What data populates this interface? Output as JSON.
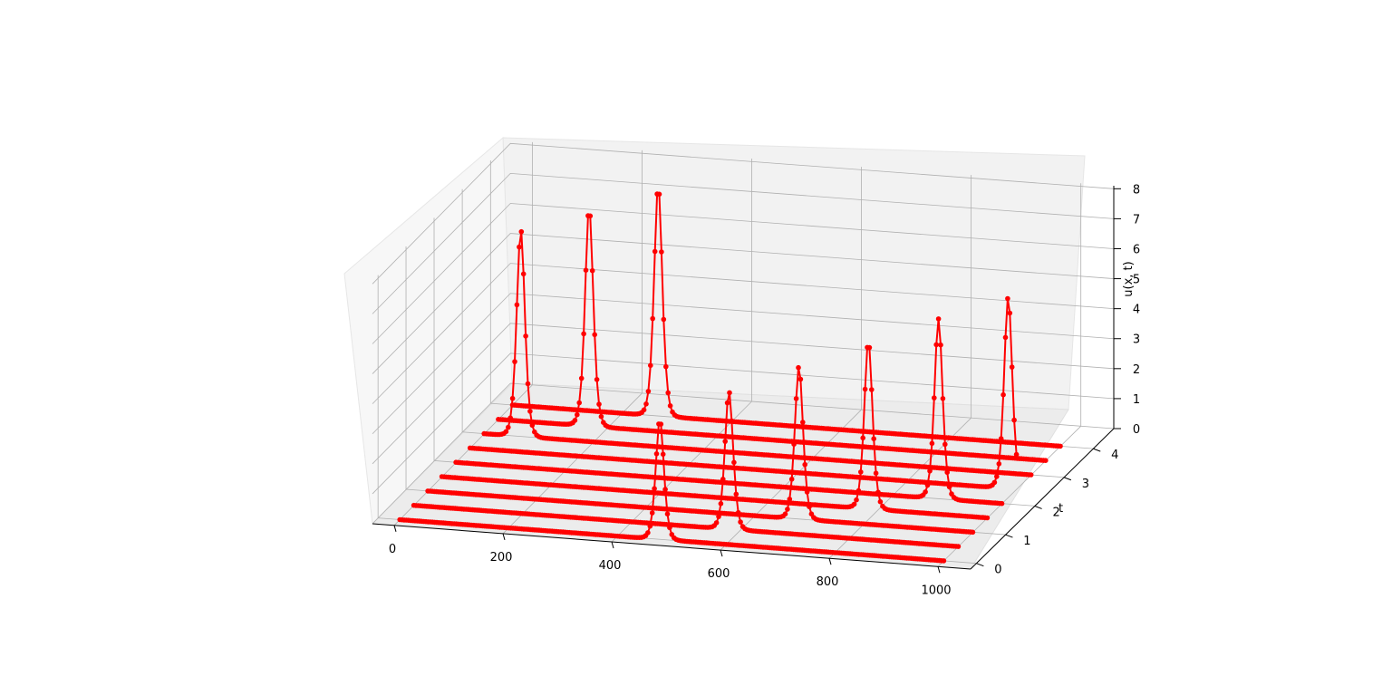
{
  "chart_data": {
    "type": "line3d",
    "title": "",
    "xlabel": "",
    "ylabel": "t",
    "zlabel": "u(x, t)",
    "xlim": [
      -40,
      1060
    ],
    "ylim": [
      -0.2,
      4.7
    ],
    "zlim": [
      0,
      8.1
    ],
    "x_ticks": [
      0,
      200,
      400,
      600,
      800,
      1000
    ],
    "y_ticks": [
      0,
      1,
      2,
      3,
      4
    ],
    "z_ticks": [
      0,
      1,
      2,
      3,
      4,
      5,
      6,
      7,
      8
    ],
    "grid": true,
    "x_domain": [
      0,
      1000
    ],
    "series_color": "#ff0000",
    "marker": "circle",
    "soliton_width": 10,
    "series": [
      {
        "t": 0.0,
        "peak_x": 478,
        "amplitude": 4.0
      },
      {
        "t": 0.5,
        "peak_x": 579,
        "amplitude": 4.6
      },
      {
        "t": 1.0,
        "peak_x": 681,
        "amplitude": 5.1
      },
      {
        "t": 1.5,
        "peak_x": 782,
        "amplitude": 5.6
      },
      {
        "t": 2.0,
        "peak_x": 884,
        "amplitude": 6.0
      },
      {
        "t": 2.5,
        "peak_x": 985,
        "amplitude": 6.4
      },
      {
        "t": 3.0,
        "peak_x": 67,
        "amplitude": 6.9
      },
      {
        "t": 3.5,
        "peak_x": 166,
        "amplitude": 7.3
      },
      {
        "t": 4.0,
        "peak_x": 266,
        "amplitude": 7.7
      }
    ]
  }
}
